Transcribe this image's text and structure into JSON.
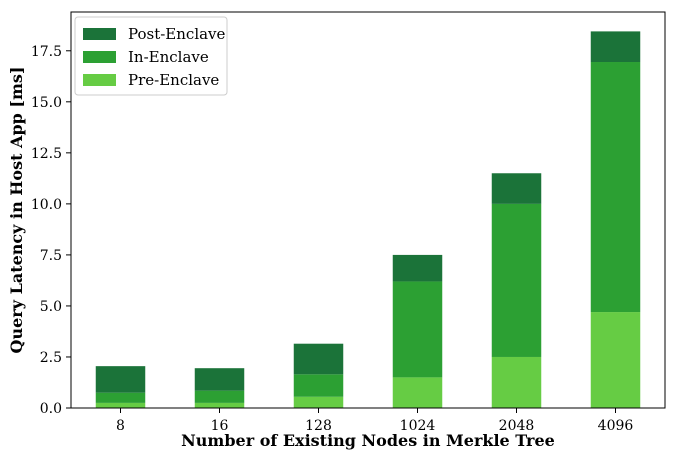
{
  "chart_data": {
    "type": "bar",
    "stacked": true,
    "title": "",
    "xlabel": "Number of Existing Nodes in Merkle Tree",
    "ylabel": "Query Latency in Host App [ms]",
    "categories": [
      "8",
      "16",
      "128",
      "1024",
      "2048",
      "4096"
    ],
    "ylim": [
      0,
      19.4
    ],
    "yticks": [
      "0.0",
      "2.5",
      "5.0",
      "7.5",
      "10.0",
      "12.5",
      "15.0",
      "17.5"
    ],
    "ytick_values": [
      0,
      2.5,
      5.0,
      7.5,
      10.0,
      12.5,
      15.0,
      17.5
    ],
    "grid": false,
    "legend_position": "top-left",
    "series": [
      {
        "name": "Pre-Enclave",
        "color": "#66cc44",
        "values": [
          0.25,
          0.25,
          0.55,
          1.5,
          2.5,
          4.7
        ]
      },
      {
        "name": "In-Enclave",
        "color": "#2ca033",
        "values": [
          0.5,
          0.6,
          1.1,
          4.7,
          7.5,
          12.25
        ]
      },
      {
        "name": "Post-Enclave",
        "color": "#1b7339",
        "values": [
          1.3,
          1.1,
          1.5,
          1.3,
          1.5,
          1.5
        ]
      }
    ],
    "legend_order": [
      "Post-Enclave",
      "In-Enclave",
      "Pre-Enclave"
    ]
  }
}
